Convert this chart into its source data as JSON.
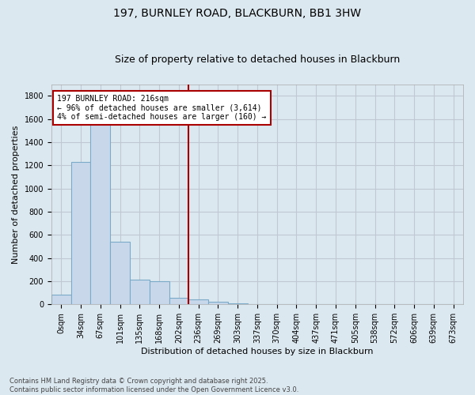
{
  "title": "197, BURNLEY ROAD, BLACKBURN, BB1 3HW",
  "subtitle": "Size of property relative to detached houses in Blackburn",
  "xlabel": "Distribution of detached houses by size in Blackburn",
  "ylabel": "Number of detached properties",
  "bar_labels": [
    "0sqm",
    "34sqm",
    "67sqm",
    "101sqm",
    "135sqm",
    "168sqm",
    "202sqm",
    "236sqm",
    "269sqm",
    "303sqm",
    "337sqm",
    "370sqm",
    "404sqm",
    "437sqm",
    "471sqm",
    "505sqm",
    "538sqm",
    "572sqm",
    "606sqm",
    "639sqm",
    "673sqm"
  ],
  "bar_values": [
    80,
    1230,
    1570,
    540,
    210,
    200,
    55,
    40,
    20,
    5,
    0,
    0,
    0,
    0,
    0,
    0,
    0,
    0,
    0,
    0,
    0
  ],
  "bar_color": "#c8d8ea",
  "bar_edge_color": "#7aaac8",
  "vline_color": "#aa0000",
  "annotation_text": "197 BURNLEY ROAD: 216sqm\n← 96% of detached houses are smaller (3,614)\n4% of semi-detached houses are larger (160) →",
  "annotation_box_facecolor": "#ffffff",
  "annotation_box_edgecolor": "#aa0000",
  "ylim": [
    0,
    1900
  ],
  "yticks": [
    0,
    200,
    400,
    600,
    800,
    1000,
    1200,
    1400,
    1600,
    1800
  ],
  "grid_color": "#c0c8d4",
  "background_color": "#dce8f0",
  "plot_bg_color": "#dce8f0",
  "footer": "Contains HM Land Registry data © Crown copyright and database right 2025.\nContains public sector information licensed under the Open Government Licence v3.0.",
  "title_fontsize": 10,
  "subtitle_fontsize": 9,
  "xlabel_fontsize": 8,
  "ylabel_fontsize": 8,
  "tick_fontsize": 7,
  "footer_fontsize": 6,
  "annotation_fontsize": 7
}
